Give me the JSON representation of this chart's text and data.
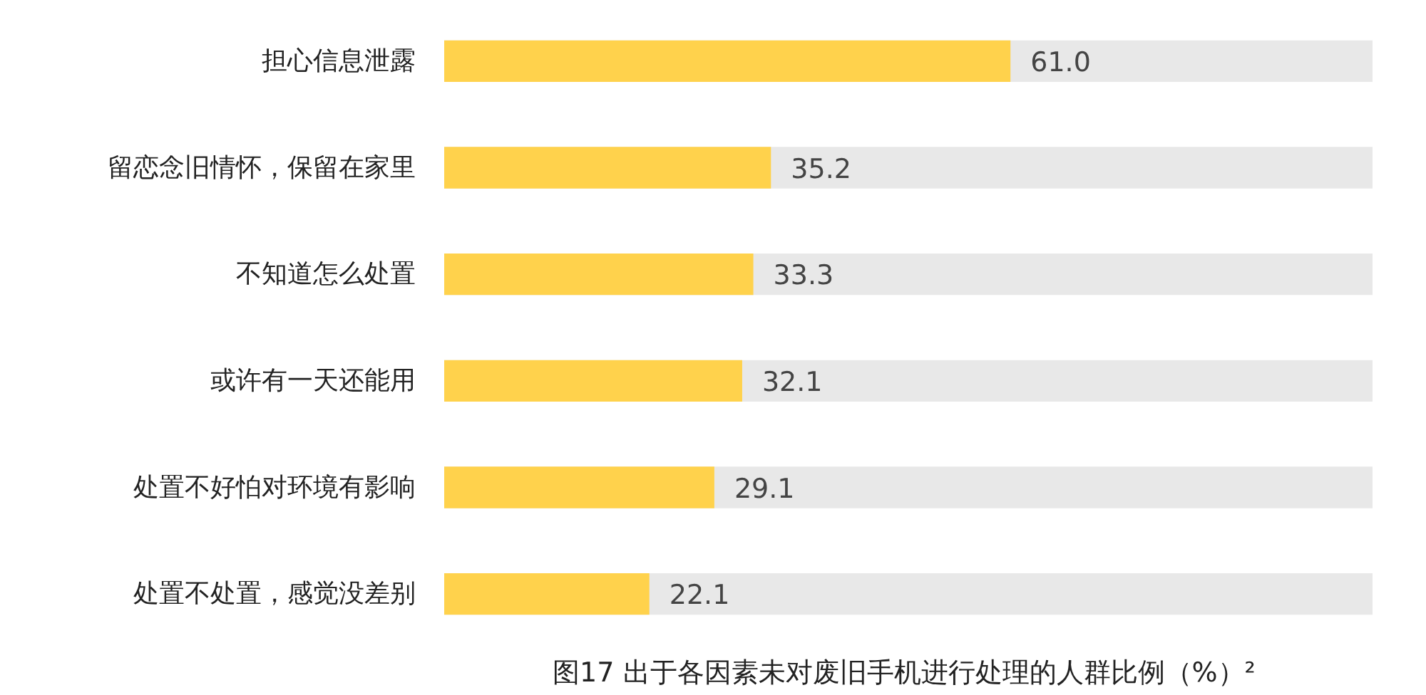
{
  "chart_data": {
    "type": "bar",
    "orientation": "horizontal",
    "title": "图17  出于各因素未对废旧手机进行处理的人群比例（%）²",
    "categories": [
      "担心信息泄露",
      "留恋念旧情怀，保留在家里",
      "不知道怎么处置",
      "或许有一天还能用",
      "处置不好怕对环境有影响",
      "处置不处置，感觉没差别"
    ],
    "values": [
      61.0,
      35.2,
      33.3,
      32.1,
      29.1,
      22.1
    ],
    "value_labels": [
      "61.0",
      "35.2",
      "33.3",
      "32.1",
      "29.1",
      "22.1"
    ],
    "color": "#ffd24c",
    "xlim": [
      0,
      100
    ],
    "tick_labels": "y",
    "grid": false
  }
}
